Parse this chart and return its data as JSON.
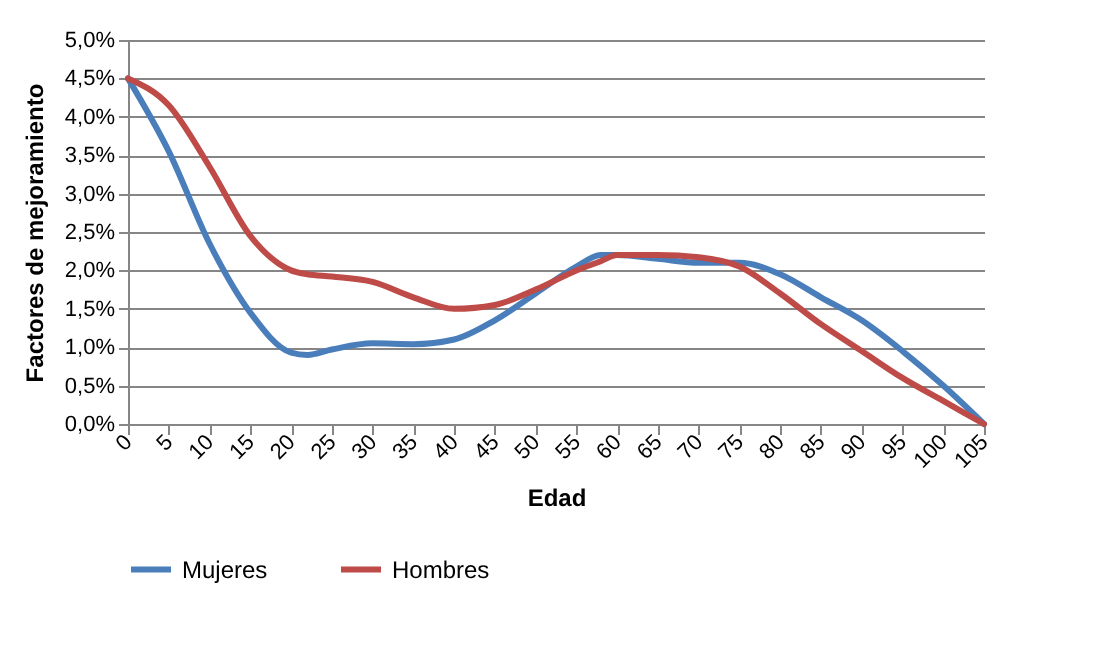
{
  "chart_data": {
    "type": "line",
    "xlabel": "Edad",
    "ylabel": "Factores de mejoramiento",
    "x": [
      0,
      5,
      10,
      15,
      20,
      22,
      25,
      30,
      35,
      40,
      45,
      50,
      55,
      58,
      60,
      65,
      70,
      75,
      80,
      85,
      90,
      95,
      100,
      105
    ],
    "series": [
      {
        "name": "Mujeres",
        "color": "#4a7ebb",
        "values": [
          4.5,
          3.55,
          2.35,
          1.45,
          0.93,
          0.9,
          0.97,
          1.05,
          1.04,
          1.1,
          1.35,
          1.7,
          2.05,
          2.2,
          2.2,
          2.15,
          2.1,
          2.1,
          1.95,
          1.65,
          1.35,
          0.95,
          0.5,
          0
        ]
      },
      {
        "name": "Hombres",
        "color": "#be4b48",
        "values": [
          4.5,
          4.15,
          3.35,
          2.45,
          2.0,
          1.95,
          1.92,
          1.85,
          1.65,
          1.5,
          1.55,
          1.75,
          2.0,
          2.12,
          2.2,
          2.2,
          2.17,
          2.05,
          1.7,
          1.3,
          0.95,
          0.6,
          0.3,
          0
        ]
      }
    ],
    "xlim": [
      0,
      105
    ],
    "xticks": [
      0,
      5,
      10,
      15,
      20,
      25,
      30,
      35,
      40,
      45,
      50,
      55,
      60,
      65,
      70,
      75,
      80,
      85,
      90,
      95,
      100,
      105
    ],
    "ylim": [
      0,
      5
    ],
    "yticks": [
      {
        "value": 0,
        "label": "0,0%"
      },
      {
        "value": 0.5,
        "label": "0,5%"
      },
      {
        "value": 1,
        "label": "1,0%"
      },
      {
        "value": 1.5,
        "label": "1,5%"
      },
      {
        "value": 2,
        "label": "2,0%"
      },
      {
        "value": 2.5,
        "label": "2,5%"
      },
      {
        "value": 3,
        "label": "3,0%"
      },
      {
        "value": 3.5,
        "label": "3,5%"
      },
      {
        "value": 4,
        "label": "4,0%"
      },
      {
        "value": 4.5,
        "label": "4,5%"
      },
      {
        "value": 5,
        "label": "5,0%"
      }
    ],
    "grid": "y",
    "legend": "bottom",
    "line_style": "solid",
    "marker": "none"
  }
}
